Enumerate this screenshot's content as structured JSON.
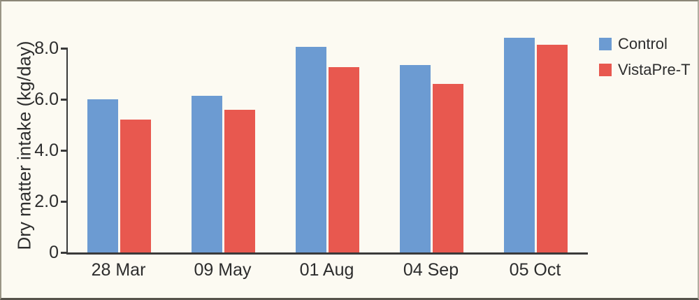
{
  "colors": {
    "background": "#FCFAF2",
    "frame_border": "#8B8677",
    "axis": "#3A3A3A",
    "text": "#2D2D2D",
    "control_blue": "#6C9BD2",
    "vistapret_red": "#E8584F"
  },
  "legend": {
    "position": "right",
    "items": [
      {
        "label": "Control",
        "color": "#6C9BD2"
      },
      {
        "label": "VistaPre-T",
        "color": "#E8584F"
      }
    ]
  },
  "chart_data": {
    "type": "bar",
    "title": "",
    "xlabel": "",
    "ylabel": "Dry matter intake (kg/day)",
    "categories": [
      "28 Mar",
      "09 May",
      "01 Aug",
      "04 Sep",
      "05 Oct"
    ],
    "series": [
      {
        "name": "Control",
        "color": "#6C9BD2",
        "values": [
          6.0,
          6.15,
          8.05,
          7.35,
          8.4
        ]
      },
      {
        "name": "VistaPre-T",
        "color": "#E8584F",
        "values": [
          5.2,
          5.6,
          7.25,
          6.6,
          8.15
        ]
      }
    ],
    "yticks": [
      0,
      2.0,
      4.0,
      6.0,
      8.0
    ],
    "ytick_labels": [
      "0",
      "2.0",
      "4.0",
      "6.0",
      "8.0"
    ],
    "ylim": [
      0,
      8.8
    ],
    "grid": false,
    "legend_position": "right"
  }
}
